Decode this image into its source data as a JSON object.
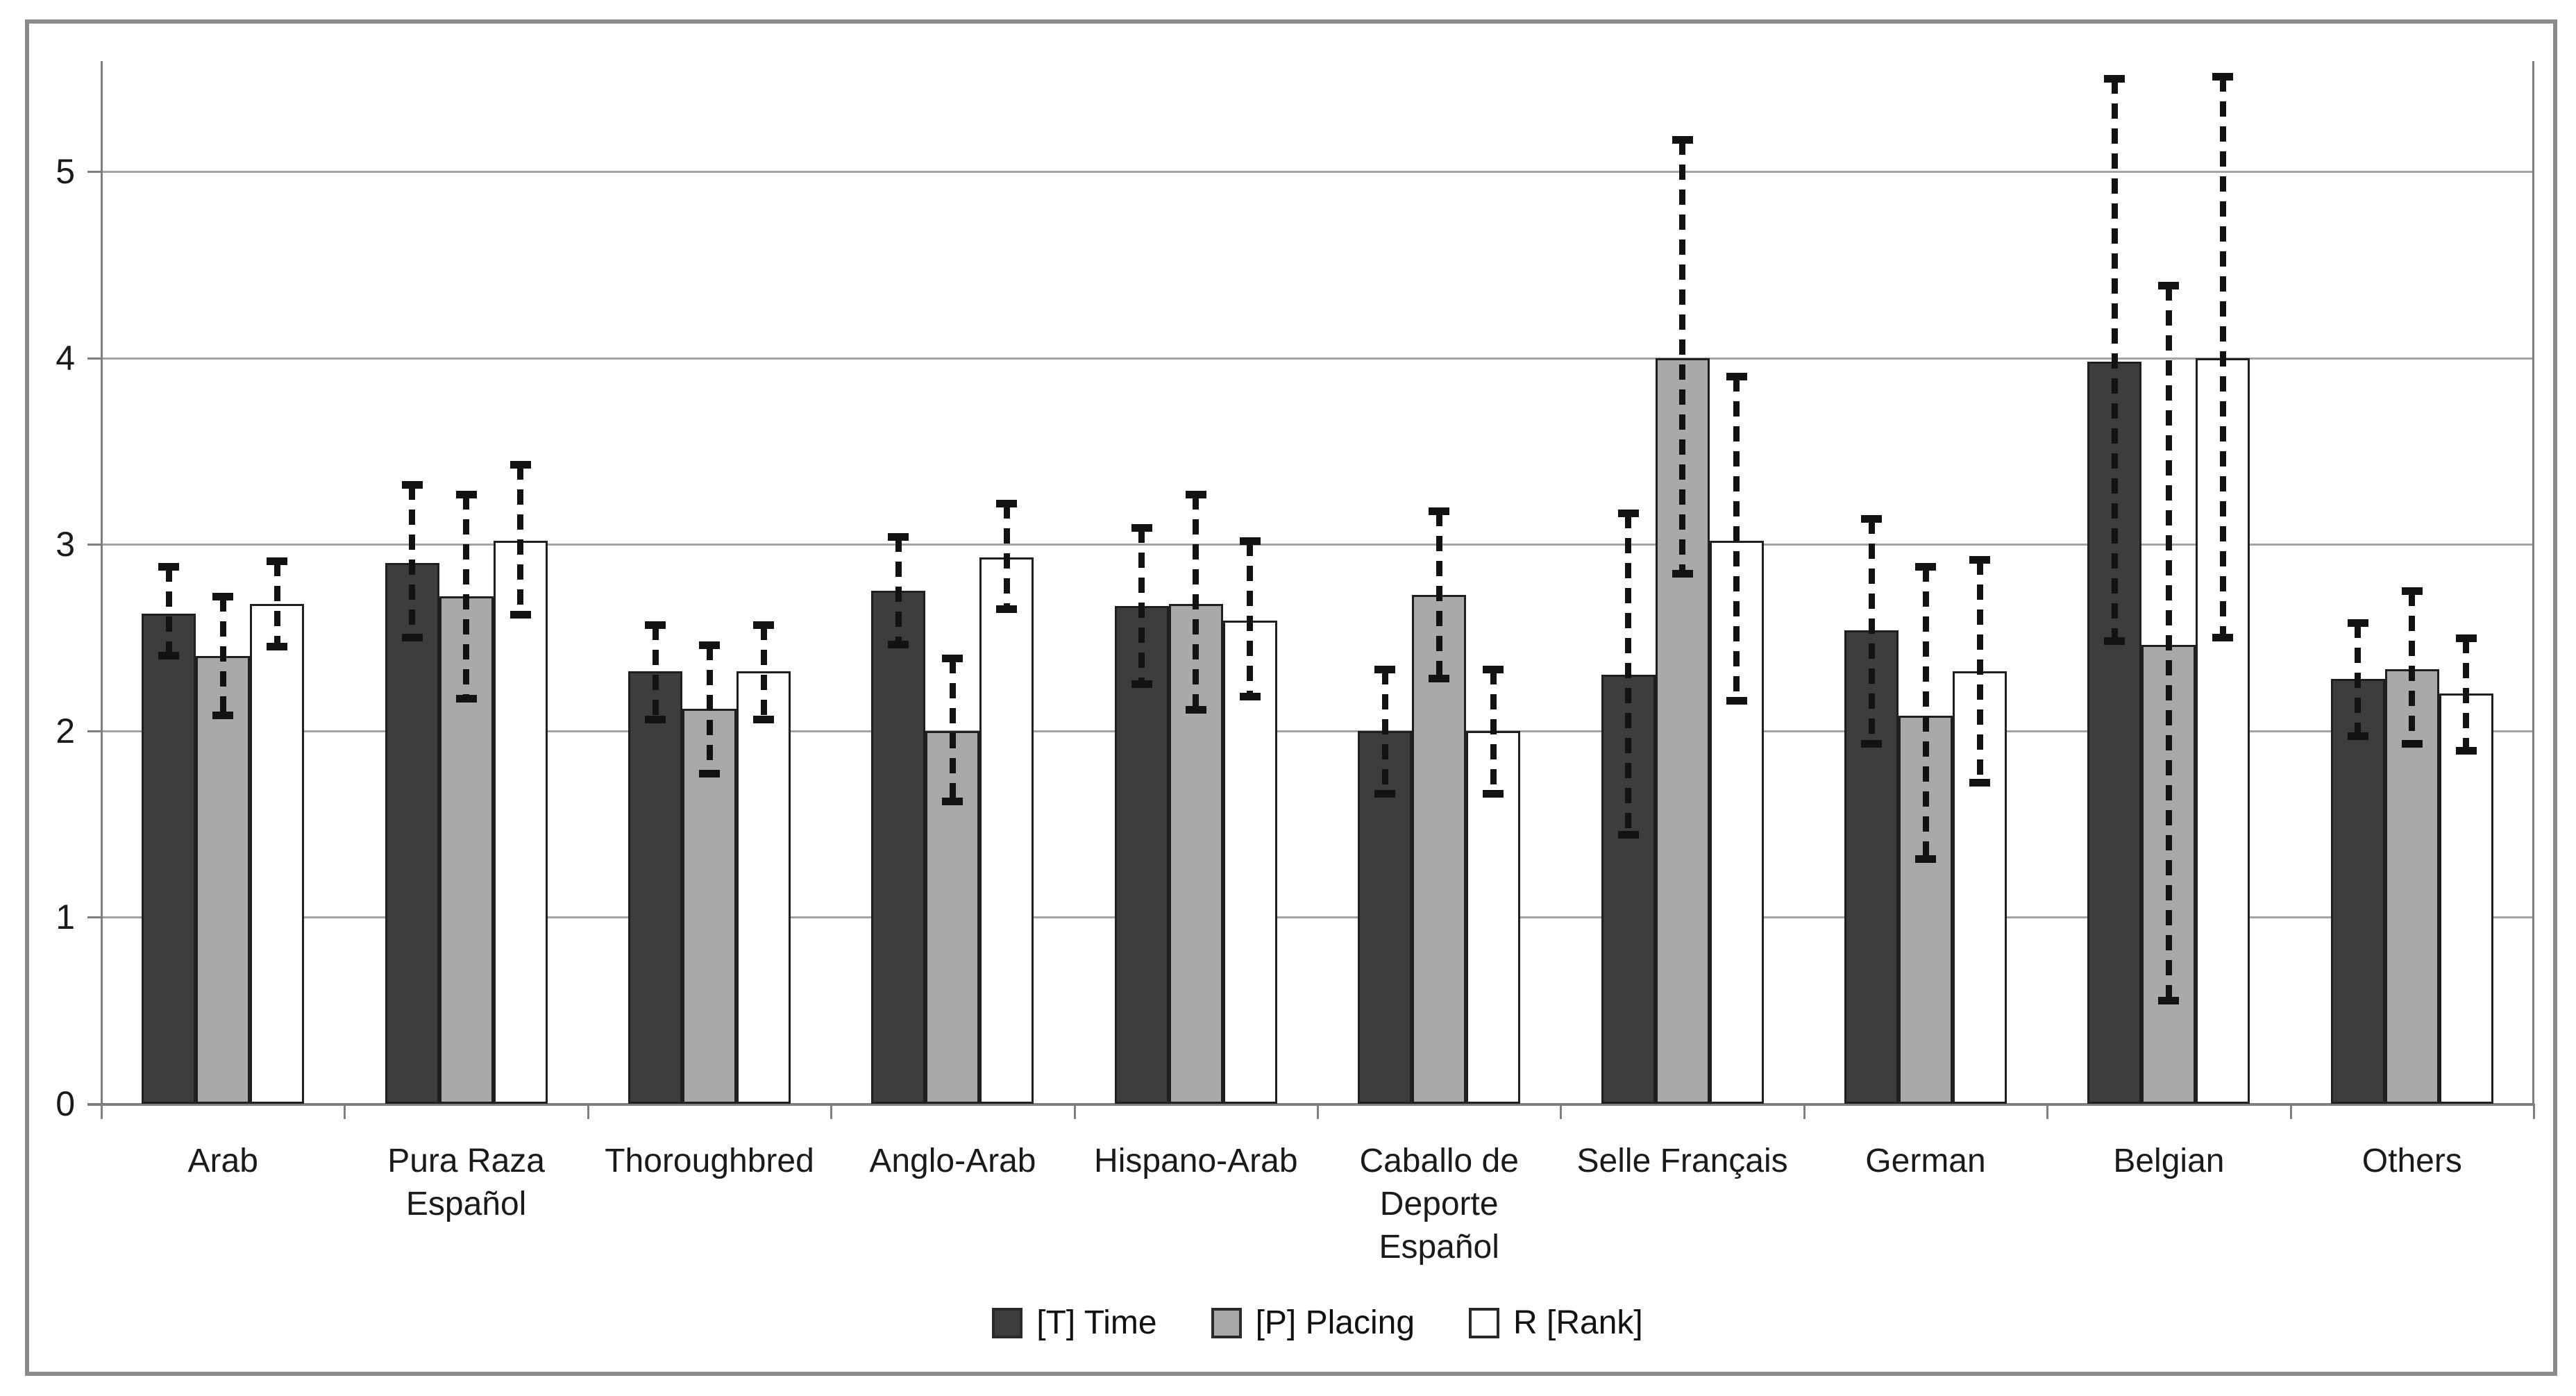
{
  "chart_data": {
    "type": "bar",
    "title": "",
    "xlabel": "",
    "ylabel": "",
    "ylim": [
      0,
      5.5
    ],
    "yticks": [
      0,
      1,
      2,
      3,
      4,
      5
    ],
    "grid": true,
    "legend_position": "bottom",
    "error_bars": "dashed vertical with solid caps",
    "categories": [
      "Arab",
      "Pura Raza Español",
      "Thoroughbred",
      "Anglo-Arab",
      "Hispano-Arab",
      "Caballo de Deporte Español",
      "Selle Français",
      "German",
      "Belgian",
      "Others"
    ],
    "category_label_lines": [
      [
        "Arab"
      ],
      [
        "Pura Raza",
        "Español"
      ],
      [
        "Thoroughbred"
      ],
      [
        "Anglo-Arab"
      ],
      [
        "Hispano-Arab"
      ],
      [
        "Caballo de",
        "Deporte",
        "Español"
      ],
      [
        "Selle Français"
      ],
      [
        "German"
      ],
      [
        "Belgian"
      ],
      [
        "Others"
      ]
    ],
    "series": [
      {
        "name": "[T] Time",
        "color": "#3d3d3d",
        "values": [
          2.63,
          2.9,
          2.32,
          2.75,
          2.67,
          2.0,
          2.3,
          2.54,
          3.98,
          2.28
        ],
        "err_low": [
          2.4,
          2.5,
          2.06,
          2.46,
          2.25,
          1.66,
          1.44,
          1.93,
          2.48,
          1.97
        ],
        "err_high": [
          2.88,
          3.32,
          2.57,
          3.04,
          3.09,
          2.33,
          3.17,
          3.14,
          5.5,
          2.58
        ]
      },
      {
        "name": "[P] Placing",
        "color": "#a9a9a9",
        "values": [
          2.4,
          2.72,
          2.12,
          2.0,
          2.68,
          2.73,
          4.0,
          2.08,
          2.46,
          2.33
        ],
        "err_low": [
          2.08,
          2.17,
          1.77,
          1.62,
          2.11,
          2.28,
          2.84,
          1.31,
          0.55,
          1.93
        ],
        "err_high": [
          2.72,
          3.27,
          2.46,
          2.39,
          3.27,
          3.18,
          5.17,
          2.88,
          4.39,
          2.75
        ]
      },
      {
        "name": "R [Rank]",
        "color": "#ffffff",
        "values": [
          2.68,
          3.02,
          2.32,
          2.93,
          2.59,
          2.0,
          3.02,
          2.32,
          4.0,
          2.2
        ],
        "err_low": [
          2.45,
          2.62,
          2.06,
          2.65,
          2.18,
          1.66,
          2.16,
          1.72,
          2.5,
          1.89
        ],
        "err_high": [
          2.91,
          3.43,
          2.57,
          3.22,
          3.02,
          2.33,
          3.9,
          2.92,
          5.51,
          2.5
        ]
      }
    ],
    "colors": {
      "gridline": "#a3a3a3",
      "axis": "#7f7f7f",
      "bar_border": "#1f1f1f",
      "error_bar": "#121212",
      "text": "#1a1a1a",
      "figure_frame": "#8a8a8a",
      "background": "#ffffff"
    }
  }
}
